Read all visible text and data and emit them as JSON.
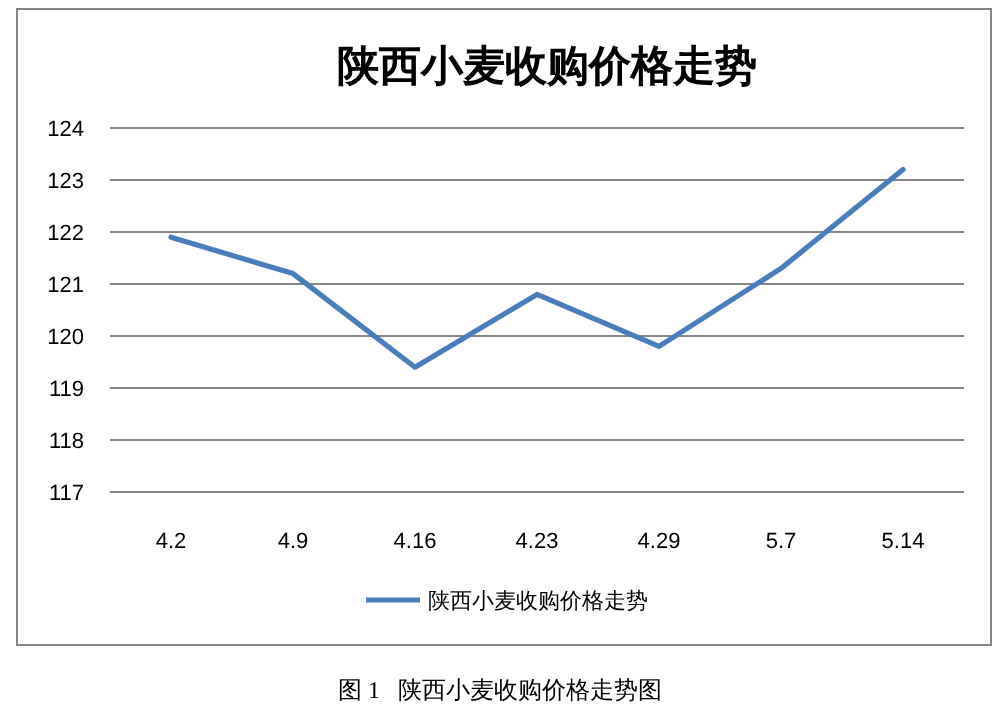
{
  "chart_data": {
    "type": "line",
    "title": "陕西小麦收购价格走势",
    "categories": [
      "4.2",
      "4.9",
      "4.16",
      "4.23",
      "4.29",
      "5.7",
      "5.14"
    ],
    "series": [
      {
        "name": "陕西小麦收购价格走势",
        "color": "#4a7ebb",
        "values": [
          121.9,
          121.2,
          119.4,
          120.8,
          119.8,
          121.3,
          123.2
        ]
      }
    ],
    "ylim": [
      117,
      124
    ],
    "yticks": [
      117,
      118,
      119,
      120,
      121,
      122,
      123,
      124
    ],
    "grid": "y",
    "legend": "bottom",
    "marker": "none",
    "line_style": "solid",
    "annotations": [
      "图 1   陕西小麦收购价格走势图"
    ]
  }
}
